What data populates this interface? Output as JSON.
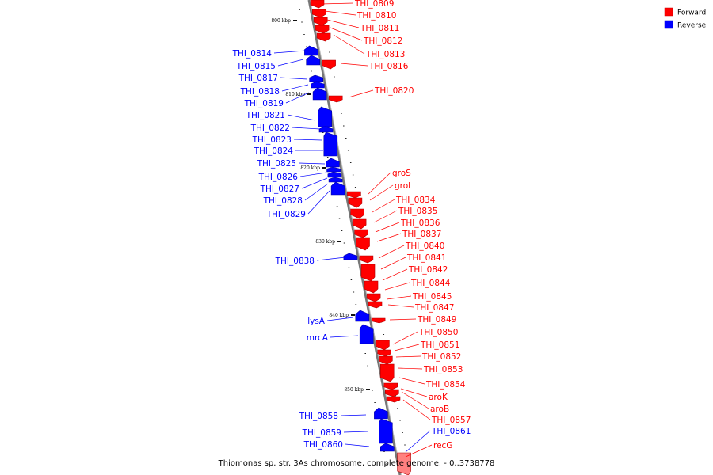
{
  "caption": "Thiomonas sp. str. 3As chromosome, complete genome. - 0..3738778",
  "legend": [
    {
      "label": "Forward",
      "color": "#ff0000"
    },
    {
      "label": "Reverse",
      "color": "#0000ff"
    }
  ],
  "colors": {
    "forward": "#ff0000",
    "reverse": "#0000ff",
    "forward_pale": "#ff8080",
    "backbone": "#888888"
  },
  "ticks": [
    "800 kbp",
    "810 kbp",
    "820 kbp",
    "830 kbp",
    "840 kbp",
    "850 kbp"
  ],
  "forward_labels": [
    "THI_0809",
    "THI_0810",
    "THI_0811",
    "THI_0812",
    "THI_0813",
    "THI_0816",
    "THI_0820",
    "groS",
    "groL",
    "THI_0834",
    "THI_0835",
    "THI_0836",
    "THI_0837",
    "THI_0840",
    "THI_0841",
    "THI_0842",
    "THI_0844",
    "THI_0845",
    "THI_0847",
    "THI_0849",
    "THI_0850",
    "THI_0851",
    "THI_0852",
    "THI_0853",
    "THI_0854",
    "aroK",
    "aroB",
    "THI_0857",
    "recG"
  ],
  "reverse_labels": [
    "THI_0814",
    "THI_0815",
    "THI_0817",
    "THI_0818",
    "THI_0819",
    "THI_0821",
    "THI_0822",
    "THI_0823",
    "THI_0824",
    "THI_0825",
    "THI_0826",
    "THI_0827",
    "THI_0828",
    "THI_0829",
    "THI_0838",
    "lysA",
    "mrcA",
    "THI_0858",
    "THI_0859",
    "THI_0860",
    "THI_0861"
  ]
}
